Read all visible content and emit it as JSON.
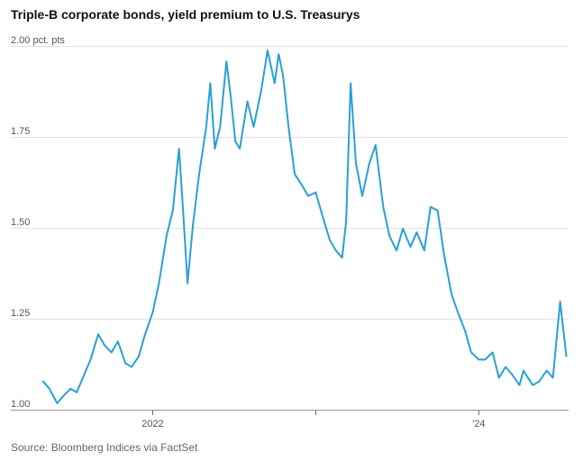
{
  "chart_data": {
    "type": "line",
    "title": "Triple-B corporate bonds, yield premium to U.S. Treasurys",
    "y_unit_label": "2.00 pct. pts",
    "ylim": [
      1.0,
      2.0
    ],
    "y_ticks": [
      {
        "value": 2.0,
        "label": "2.00 pct. pts"
      },
      {
        "value": 1.75,
        "label": "1.75"
      },
      {
        "value": 1.5,
        "label": "1.50"
      },
      {
        "value": 1.25,
        "label": "1.25"
      },
      {
        "value": 1.0,
        "label": "1.00"
      }
    ],
    "xlim": [
      "2021-05-01",
      "2024-07-20"
    ],
    "x_ticks": [
      {
        "value": "2022-01-01",
        "label": "2022"
      },
      {
        "value": "2023-01-01",
        "label": ""
      },
      {
        "value": "2024-01-01",
        "label": "'24"
      }
    ],
    "grid": true,
    "line_color": "#2a9fd6",
    "series": [
      {
        "x": [
          "2021-05-01",
          "2021-05-15",
          "2021-06-01",
          "2021-06-15",
          "2021-07-01",
          "2021-07-15",
          "2021-08-01",
          "2021-08-15",
          "2021-09-01",
          "2021-09-15",
          "2021-10-01",
          "2021-10-15",
          "2021-11-01",
          "2021-11-15",
          "2021-12-01",
          "2021-12-15",
          "2022-01-01",
          "2022-01-15",
          "2022-02-01",
          "2022-02-15",
          "2022-03-01",
          "2022-03-10",
          "2022-03-20",
          "2022-04-01",
          "2022-04-15",
          "2022-05-01",
          "2022-05-10",
          "2022-05-20",
          "2022-06-01",
          "2022-06-15",
          "2022-06-25",
          "2022-07-05",
          "2022-07-15",
          "2022-08-01",
          "2022-08-15",
          "2022-09-01",
          "2022-09-15",
          "2022-10-01",
          "2022-10-10",
          "2022-10-20",
          "2022-11-01",
          "2022-11-15",
          "2022-12-01",
          "2022-12-15",
          "2023-01-01",
          "2023-01-15",
          "2023-02-01",
          "2023-02-15",
          "2023-03-01",
          "2023-03-10",
          "2023-03-20",
          "2023-04-01",
          "2023-04-15",
          "2023-05-01",
          "2023-05-15",
          "2023-06-01",
          "2023-06-15",
          "2023-07-01",
          "2023-07-15",
          "2023-08-01",
          "2023-08-15",
          "2023-09-01",
          "2023-09-15",
          "2023-10-01",
          "2023-10-15",
          "2023-11-01",
          "2023-11-15",
          "2023-12-01",
          "2023-12-15",
          "2024-01-01",
          "2024-01-15",
          "2024-02-01",
          "2024-02-15",
          "2024-03-01",
          "2024-03-15",
          "2024-04-01",
          "2024-04-10",
          "2024-04-20",
          "2024-05-01",
          "2024-05-15",
          "2024-06-01",
          "2024-06-15",
          "2024-07-01",
          "2024-07-15"
        ],
        "values": [
          1.08,
          1.06,
          1.02,
          1.04,
          1.06,
          1.05,
          1.1,
          1.14,
          1.21,
          1.18,
          1.16,
          1.19,
          1.13,
          1.12,
          1.15,
          1.21,
          1.27,
          1.35,
          1.48,
          1.55,
          1.72,
          1.55,
          1.35,
          1.51,
          1.65,
          1.78,
          1.9,
          1.72,
          1.78,
          1.96,
          1.86,
          1.74,
          1.72,
          1.85,
          1.78,
          1.88,
          1.99,
          1.9,
          1.98,
          1.92,
          1.78,
          1.65,
          1.62,
          1.59,
          1.6,
          1.54,
          1.47,
          1.44,
          1.42,
          1.52,
          1.9,
          1.68,
          1.59,
          1.68,
          1.73,
          1.56,
          1.48,
          1.44,
          1.5,
          1.45,
          1.49,
          1.44,
          1.56,
          1.55,
          1.43,
          1.32,
          1.27,
          1.22,
          1.16,
          1.14,
          1.14,
          1.16,
          1.09,
          1.12,
          1.1,
          1.07,
          1.11,
          1.09,
          1.07,
          1.08,
          1.11,
          1.09,
          1.3,
          1.15
        ]
      }
    ]
  },
  "source": "Source: Bloomberg Indices via FactSet"
}
